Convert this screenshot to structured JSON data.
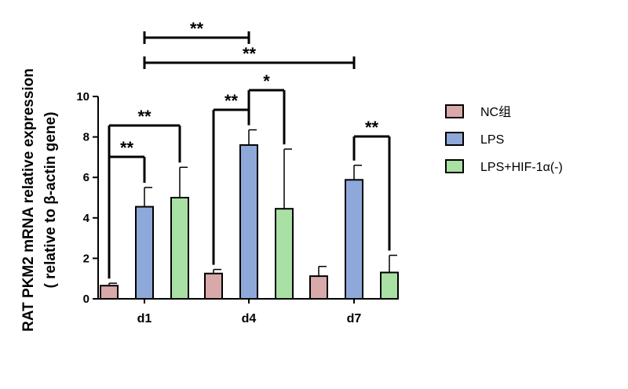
{
  "chart_data": {
    "type": "bar",
    "categories": [
      "d1",
      "d4",
      "d7"
    ],
    "series": [
      {
        "name": "NC组",
        "values": [
          0.65,
          1.25,
          1.12
        ],
        "errors": [
          0.12,
          0.2,
          0.48
        ],
        "color": "#d9a9a9"
      },
      {
        "name": "LPS",
        "values": [
          4.55,
          7.6,
          5.88
        ],
        "errors": [
          0.95,
          0.75,
          0.72
        ],
        "color": "#8ea9d9"
      },
      {
        "name": "LPS+HIF-1α(-)",
        "values": [
          5.0,
          4.45,
          1.3
        ],
        "errors": [
          1.5,
          2.95,
          0.85
        ],
        "color": "#a9e0a4"
      }
    ],
    "ylabel_lines": [
      "RAT PKM2 mRNA relative expression",
      "( relative to β-actin gene)"
    ],
    "ylim": [
      0,
      10
    ],
    "yticks": [
      "0",
      "2",
      "4",
      "6",
      "8",
      "10"
    ],
    "grid": false,
    "legend_position": "right",
    "significance": [
      {
        "label": "**",
        "from": [
          0,
          0
        ],
        "to": [
          0,
          1
        ]
      },
      {
        "label": "**",
        "from": [
          0,
          0
        ],
        "to": [
          0,
          2
        ]
      },
      {
        "label": "**",
        "from": [
          1,
          0
        ],
        "to": [
          1,
          1
        ]
      },
      {
        "label": "*",
        "from": [
          1,
          1
        ],
        "to": [
          1,
          2
        ]
      },
      {
        "label": "**",
        "from": [
          2,
          1
        ],
        "to": [
          2,
          2
        ]
      },
      {
        "label": "**",
        "from": [
          0,
          1
        ],
        "to": [
          1,
          1
        ]
      },
      {
        "label": "**",
        "from": [
          0,
          1
        ],
        "to": [
          2,
          1
        ]
      }
    ]
  }
}
